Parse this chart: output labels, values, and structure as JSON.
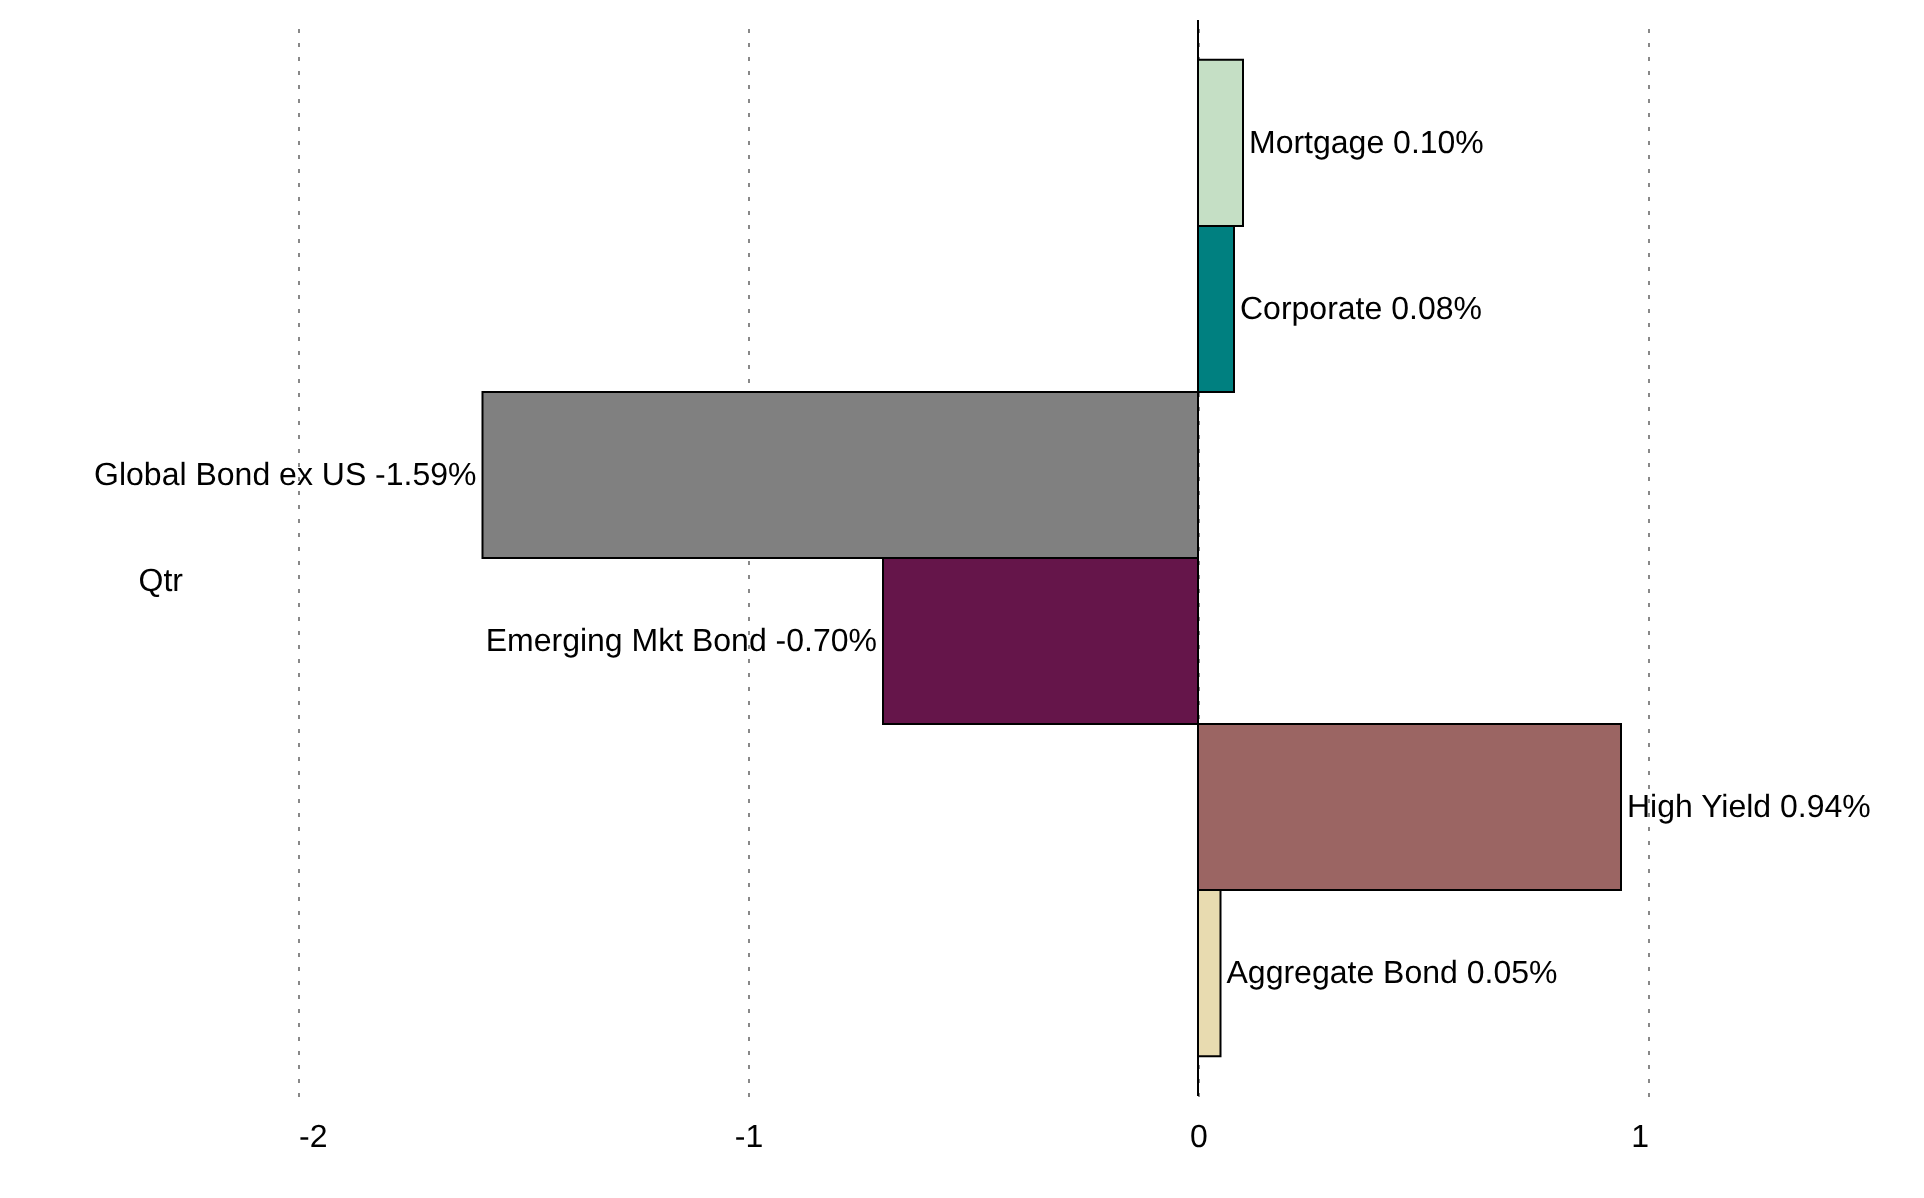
{
  "chart_data": {
    "type": "bar",
    "orientation": "horizontal",
    "categories": [
      null
    ],
    "ylabel": "Qtr",
    "series": [
      {
        "name": "Mortgage",
        "color": "#c5dfc5",
        "values": [
          0.1
        ],
        "value_labels": [
          "0.10%"
        ]
      },
      {
        "name": "Corporate",
        "color": "#008080",
        "values": [
          0.08
        ],
        "value_labels": [
          "0.08%"
        ]
      },
      {
        "name": "Global Bond ex US",
        "color": "#808080",
        "values": [
          -1.59
        ],
        "value_labels": [
          "-1.59%"
        ]
      },
      {
        "name": "Emerging Mkt Bond",
        "color": "#65154a",
        "values": [
          -0.7
        ],
        "value_labels": [
          "-0.70%"
        ]
      },
      {
        "name": "High Yield",
        "color": "#9b6563",
        "values": [
          0.94
        ],
        "value_labels": [
          "0.94%"
        ]
      },
      {
        "name": "Aggregate Bond",
        "color": "#e8dbb0",
        "values": [
          0.05
        ],
        "value_labels": [
          "0.05%"
        ]
      }
    ],
    "xlim": [
      -2,
      1
    ],
    "xticks": [
      -2,
      -1,
      0,
      1
    ],
    "grid": "x",
    "ref_lines": [
      {
        "axis": "x",
        "value": 0,
        "color": "#000000"
      }
    ]
  }
}
